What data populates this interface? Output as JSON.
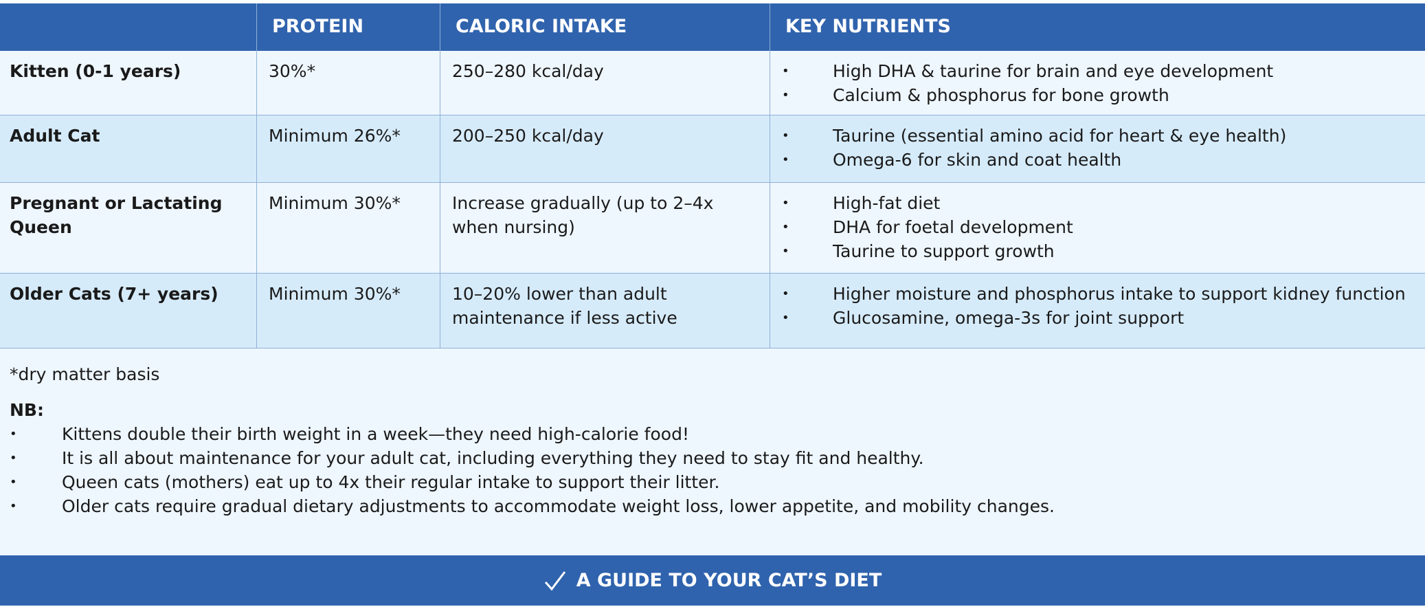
{
  "table": {
    "headers": [
      "PROTEIN",
      "CALORIC INTAKE",
      "KEY NUTRIENTS"
    ],
    "rows": [
      {
        "stage": "Kitten (0-1 years)",
        "protein": "30%*",
        "calories": "250–280 kcal/day",
        "nutrients": [
          "High DHA & taurine for brain and eye development",
          "Calcium & phosphorus for bone growth"
        ]
      },
      {
        "stage": "Adult Cat",
        "protein": "Minimum 26%*",
        "calories": "200–250 kcal/day",
        "nutrients": [
          "Taurine (essential amino acid for heart & eye health)",
          "Omega-6 for skin and coat health"
        ]
      },
      {
        "stage": "Pregnant or Lactating Queen",
        "protein": "Minimum 30%*",
        "calories": "Increase gradually (up to 2–4x when nursing)",
        "nutrients": [
          "High-fat diet",
          "DHA for foetal development",
          "Taurine to support growth"
        ]
      },
      {
        "stage": "Older Cats (7+ years)",
        "protein": "Minimum 30%*",
        "calories": "10–20% lower than adult maintenance if less active",
        "nutrients": [
          "Higher moisture and phosphorus intake to support kidney function",
          "Glucosamine, omega-3s for joint support"
        ]
      }
    ]
  },
  "footnote": "*dry matter basis",
  "nb": {
    "label": "NB:",
    "items": [
      "Kittens double their birth weight in a week—they need high-calorie food!",
      "It is all about maintenance for your adult cat, including everything they need to stay fit and healthy.",
      "Queen cats (mothers) eat up to 4x their regular intake to support their litter.",
      "Older cats require gradual dietary adjustments to accommodate weight loss, lower appetite, and mobility changes."
    ]
  },
  "banner": {
    "title": "A GUIDE TO YOUR CAT’S DIET"
  }
}
